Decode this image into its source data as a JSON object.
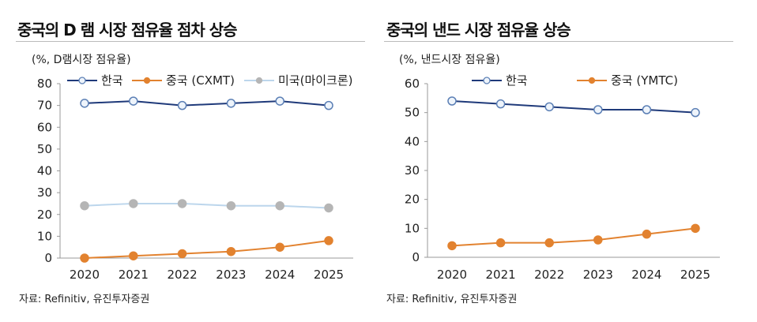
{
  "chart_data": [
    {
      "type": "line",
      "title": "중국의 D 램 시장 점유율 점차 상승",
      "ylabel": "(%, D램시장 점유율)",
      "categories": [
        "2020",
        "2021",
        "2022",
        "2023",
        "2024",
        "2025"
      ],
      "ylim": [
        0,
        80
      ],
      "yticks": [
        0,
        10,
        20,
        30,
        40,
        50,
        60,
        70,
        80
      ],
      "grid": false,
      "legend": "top",
      "series": [
        {
          "name": "한국",
          "values": [
            71,
            72,
            70,
            71,
            72,
            70
          ],
          "color": "#1f3a7a",
          "marker": "open-circle"
        },
        {
          "name": "중국 (CXMT)",
          "values": [
            0,
            1,
            2,
            3,
            5,
            8
          ],
          "color": "#e2822f",
          "marker": "filled-circle"
        },
        {
          "name": "미국(마이크론)",
          "values": [
            24,
            25,
            25,
            24,
            24,
            23
          ],
          "color": "#bcd6ec",
          "marker": "gray-circle",
          "marker_color": "#b5b5b5"
        }
      ],
      "source": "자료: Refinitiv, 유진투자증권"
    },
    {
      "type": "line",
      "title": "중국의 낸드 시장 점유율 상승",
      "ylabel": "(%, 낸드시장 점유율)",
      "categories": [
        "2020",
        "2021",
        "2022",
        "2023",
        "2024",
        "2025"
      ],
      "ylim": [
        0,
        60
      ],
      "yticks": [
        0,
        10,
        20,
        30,
        40,
        50,
        60
      ],
      "grid": false,
      "legend": "top",
      "series": [
        {
          "name": "한국",
          "values": [
            54,
            53,
            52,
            51,
            51,
            50
          ],
          "color": "#1f3a7a",
          "marker": "open-circle"
        },
        {
          "name": "중국 (YMTC)",
          "values": [
            4,
            5,
            5,
            6,
            8,
            10
          ],
          "color": "#e2822f",
          "marker": "filled-circle"
        }
      ],
      "source": "자료: Refinitiv, 유진투자증권"
    }
  ]
}
